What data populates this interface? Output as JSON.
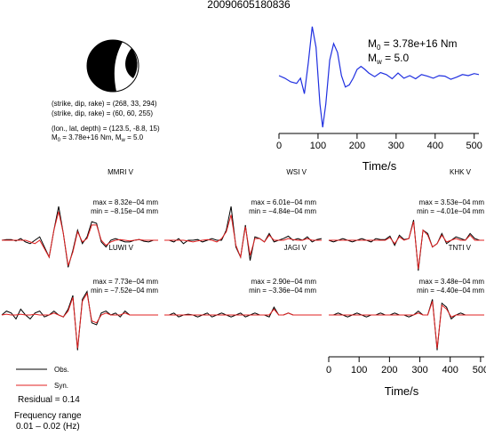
{
  "event_id": "20090605180836",
  "mechanism": {
    "line1": "(strike, dip, rake) = (268, 33, 294)",
    "line2": "(strike, dip, rake) = (60, 60, 255)",
    "line3": "(lon., lat, depth) = (123.5, -8.8, 15)",
    "m0_mantissa": "M",
    "m0_sub": "0",
    "m0_rest": " = 3.78e+16 Nm, M",
    "mw_sub": "w",
    "mw_rest": " = 5.0"
  },
  "stf_labels": {
    "m0_prefix": "M",
    "m0_sub": "0",
    "m0_value": " = 3.78e+16 Nm",
    "mw_prefix": "M",
    "mw_sub": "w",
    "mw_value": " = 5.0"
  },
  "legend": {
    "obs": "Obs.",
    "syn": "Syn.",
    "residual": "Residual = 0.14",
    "freq_title": "Frequency range",
    "freq_value": "0.01 – 0.02 (Hz)"
  },
  "colors": {
    "obs": "#000000",
    "syn": "#e02020",
    "stf": "#1f2fe0"
  },
  "chart_data": [
    {
      "type": "line",
      "name": "source-time-function",
      "x_ticks": [
        0,
        100,
        200,
        300,
        400,
        500
      ],
      "xlabel": "Time/s",
      "xlim": [
        0,
        512
      ],
      "series": [
        {
          "x": [
            0,
            15,
            30,
            45,
            55,
            65,
            75,
            85,
            95,
            105,
            112,
            120,
            130,
            140,
            150,
            160,
            170,
            180,
            190,
            200,
            210,
            220,
            230,
            245,
            260,
            275,
            290,
            305,
            320,
            335,
            350,
            365,
            380,
            395,
            410,
            425,
            440,
            455,
            470,
            485,
            500,
            512
          ],
          "values": [
            0.0,
            -0.05,
            -0.12,
            -0.15,
            -0.05,
            -0.35,
            0.25,
            0.95,
            0.55,
            -0.55,
            -1.0,
            -0.55,
            0.3,
            0.62,
            0.45,
            0.0,
            -0.22,
            -0.18,
            -0.05,
            0.12,
            0.18,
            0.12,
            0.05,
            -0.02,
            0.06,
            0.02,
            -0.06,
            0.05,
            -0.05,
            0.0,
            -0.06,
            0.02,
            -0.01,
            -0.05,
            0.0,
            -0.01,
            -0.07,
            -0.03,
            0.02,
            0.0,
            0.04,
            0.02
          ]
        }
      ]
    },
    {
      "type": "line",
      "station": "MMRI V",
      "max": "max = 8.32e−04 mm",
      "min": "min = −8.15e−04 mm",
      "series": [
        {
          "name": "Obs.",
          "values": [
            0.0,
            0.02,
            0.02,
            -0.02,
            0.05,
            -0.05,
            -0.1,
            0.0,
            0.1,
            -0.2,
            -0.5,
            0.3,
            1.0,
            0.2,
            -0.8,
            -0.3,
            0.3,
            -0.1,
            0.1,
            0.55,
            0.5,
            -0.05,
            -0.2,
            0.0,
            0.05,
            0.0,
            -0.05,
            -0.05,
            0.0,
            0.02,
            -0.03,
            -0.05,
            0.0,
            0.0
          ]
        },
        {
          "name": "Syn.",
          "values": [
            0.0,
            0.0,
            0.0,
            0.0,
            0.0,
            0.0,
            -0.05,
            -0.1,
            0.0,
            -0.25,
            -0.5,
            0.3,
            0.85,
            0.2,
            -0.75,
            -0.35,
            0.25,
            -0.05,
            0.05,
            0.45,
            0.45,
            0.0,
            -0.15,
            -0.05,
            0.0,
            0.02,
            0.0,
            -0.02,
            0.0,
            0.02,
            0.0,
            0.0,
            0.0,
            0.0
          ]
        }
      ]
    },
    {
      "type": "line",
      "station": "WSI V",
      "max": "max = 6.01e−04 mm",
      "min": "min = −4.84e−04 mm",
      "series": [
        {
          "name": "Obs.",
          "values": [
            0.0,
            0.0,
            -0.05,
            0.05,
            -0.1,
            0.0,
            0.0,
            0.02,
            -0.05,
            0.0,
            0.05,
            0.0,
            0.0,
            0.3,
            1.0,
            -0.2,
            -0.5,
            0.45,
            -0.6,
            0.1,
            0.05,
            -0.05,
            0.2,
            -0.05,
            0.0,
            0.05,
            0.12,
            0.0,
            0.05,
            0.0,
            0.1,
            -0.05,
            0.02,
            0.05
          ]
        },
        {
          "name": "Syn.",
          "values": [
            0.0,
            0.0,
            0.0,
            0.0,
            0.0,
            -0.02,
            -0.05,
            -0.02,
            0.0,
            0.02,
            0.0,
            -0.05,
            0.05,
            0.25,
            0.75,
            -0.15,
            -0.5,
            0.4,
            -0.45,
            0.05,
            0.05,
            -0.05,
            0.15,
            0.0,
            0.0,
            0.0,
            0.05,
            0.02,
            0.0,
            0.0,
            0.05,
            0.0,
            0.0,
            0.0
          ]
        }
      ]
    },
    {
      "type": "line",
      "station": "KHK V",
      "max": "max = 3.53e−04 mm",
      "min": "min = −4.01e−04 mm",
      "series": [
        {
          "name": "Obs.",
          "values": [
            0.0,
            -0.05,
            0.0,
            0.05,
            0.0,
            -0.05,
            0.0,
            0.05,
            0.0,
            -0.05,
            0.05,
            0.02,
            0.02,
            0.12,
            -0.15,
            0.15,
            0.02,
            0.05,
            0.6,
            -0.9,
            0.3,
            0.2,
            -0.2,
            -0.1,
            0.2,
            -0.1,
            0.0,
            0.1,
            0.05,
            0.0,
            0.2,
            0.05,
            0.0,
            0.0
          ]
        },
        {
          "name": "Syn.",
          "values": [
            0.0,
            0.0,
            0.0,
            0.0,
            0.0,
            0.0,
            0.0,
            0.0,
            0.0,
            0.0,
            0.0,
            0.0,
            0.0,
            0.08,
            -0.1,
            0.1,
            0.0,
            0.05,
            0.55,
            -0.85,
            0.3,
            0.15,
            -0.2,
            -0.1,
            0.15,
            -0.05,
            0.0,
            0.05,
            0.0,
            0.0,
            0.15,
            0.0,
            0.0,
            0.0
          ]
        }
      ]
    },
    {
      "type": "line",
      "station": "LUWI V",
      "max": "max = 7.73e−04 mm",
      "min": "min = −7.52e−04 mm",
      "series": [
        {
          "name": "Obs.",
          "values": [
            0.0,
            0.1,
            0.05,
            -0.1,
            0.15,
            0.0,
            -0.1,
            0.05,
            0.1,
            -0.05,
            0.0,
            0.1,
            0.0,
            -0.05,
            0.15,
            0.5,
            -0.9,
            0.4,
            0.6,
            -0.2,
            -0.25,
            0.05,
            0.1,
            0.0,
            0.05,
            -0.05,
            0.1,
            0.0,
            0.0,
            0.0,
            0.0,
            0.0,
            0.0,
            0.0
          ]
        },
        {
          "name": "Syn.",
          "values": [
            0.0,
            0.02,
            0.0,
            0.0,
            0.02,
            0.0,
            0.0,
            0.02,
            0.0,
            0.0,
            0.0,
            0.05,
            0.0,
            -0.05,
            0.1,
            0.45,
            -0.85,
            0.35,
            0.55,
            -0.15,
            -0.2,
            0.0,
            0.05,
            0.0,
            0.0,
            0.0,
            0.05,
            0.0,
            0.0,
            0.0,
            0.0,
            0.0,
            0.0,
            0.0
          ]
        }
      ]
    },
    {
      "type": "line",
      "station": "JAGI V",
      "max": "max = 2.90e−04 mm",
      "min": "min = −3.36e−04 mm",
      "series": [
        {
          "name": "Obs.",
          "values": [
            0.0,
            0.0,
            0.05,
            -0.05,
            0.0,
            0.02,
            0.0,
            -0.05,
            0.0,
            0.05,
            -0.05,
            0.0,
            0.05,
            0.0,
            -0.05,
            0.0,
            0.05,
            -0.05,
            0.0,
            0.05,
            0.0,
            0.0,
            -0.05,
            0.2,
            0.0,
            0.0,
            0.05,
            0.0,
            0.0,
            0.0,
            0.0,
            0.0,
            0.0,
            0.0
          ]
        },
        {
          "name": "Syn.",
          "values": [
            0.0,
            0.0,
            0.0,
            0.0,
            0.0,
            0.0,
            0.0,
            0.0,
            0.0,
            0.0,
            0.0,
            0.0,
            0.0,
            0.0,
            0.0,
            0.0,
            0.0,
            0.0,
            0.0,
            0.0,
            0.0,
            0.0,
            0.0,
            0.15,
            0.0,
            0.0,
            0.05,
            0.0,
            0.0,
            0.0,
            0.0,
            0.0,
            0.0,
            0.0
          ]
        }
      ]
    },
    {
      "type": "line",
      "station": "TNTI V",
      "max": "max = 3.48e−04 mm",
      "min": "min = −4.40e−04 mm",
      "series": [
        {
          "name": "Obs.",
          "values": [
            0.0,
            0.0,
            0.05,
            0.0,
            -0.05,
            0.0,
            0.05,
            0.0,
            -0.05,
            0.0,
            0.0,
            0.05,
            0.0,
            0.0,
            0.05,
            0.0,
            0.0,
            -0.05,
            0.0,
            0.1,
            0.0,
            0.0,
            0.4,
            -0.9,
            0.3,
            0.2,
            -0.1,
            0.0,
            0.05,
            0.0,
            0.0,
            0.0,
            0.0,
            0.0
          ]
        },
        {
          "name": "Syn.",
          "values": [
            0.0,
            0.0,
            0.0,
            0.0,
            0.0,
            0.0,
            0.0,
            0.0,
            0.0,
            0.0,
            0.0,
            0.0,
            0.0,
            0.0,
            0.0,
            0.0,
            0.0,
            0.0,
            0.0,
            0.05,
            0.0,
            0.0,
            0.35,
            -0.85,
            0.25,
            0.15,
            -0.05,
            0.0,
            0.0,
            0.0,
            0.0,
            0.0,
            0.0,
            0.0
          ]
        }
      ]
    },
    {
      "type": "axis",
      "name": "waveform-time-axis",
      "x_ticks": [
        0,
        100,
        200,
        300,
        400,
        500
      ],
      "xlabel": "Time/s",
      "xlim": [
        0,
        512
      ]
    }
  ]
}
